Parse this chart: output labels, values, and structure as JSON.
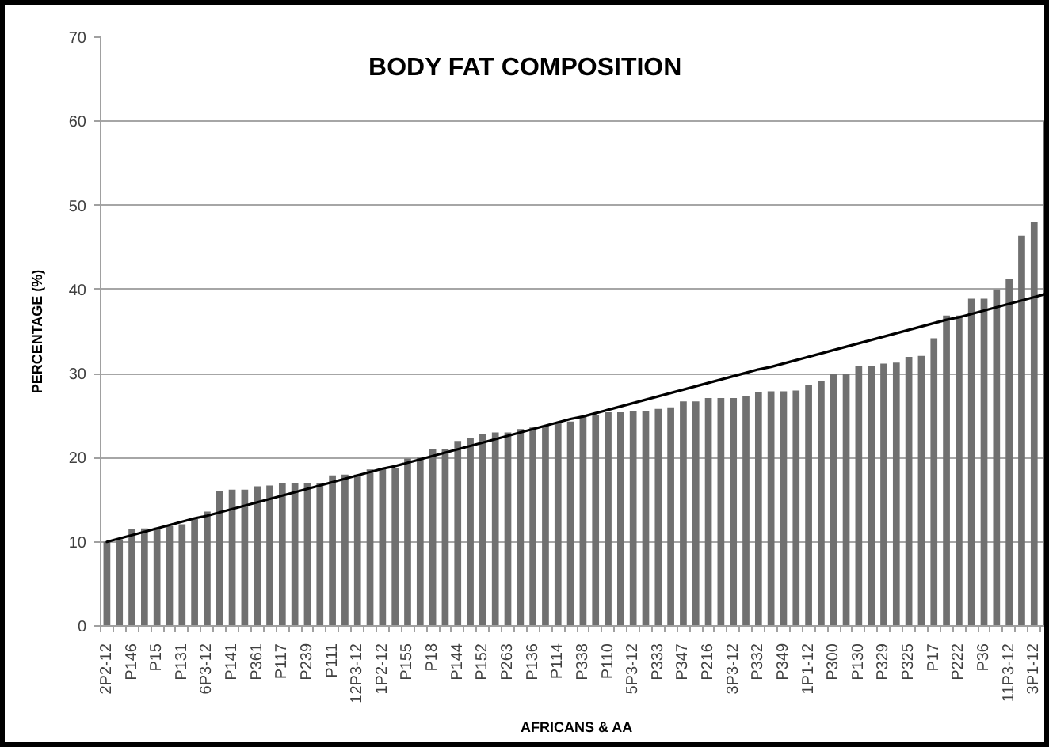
{
  "chart_data": {
    "type": "bar",
    "title": "BODY FAT COMPOSITION",
    "xlabel": "AFRICANS & AA",
    "ylabel": "PERCENTAGE (%)",
    "categories": [
      "2P2-12",
      null,
      "P146",
      null,
      "P15",
      null,
      "P131",
      null,
      "6P3-12",
      null,
      "P141",
      null,
      "P361",
      null,
      "P117",
      null,
      "P239",
      null,
      "P111",
      null,
      "12P3-12",
      null,
      "1P2-12",
      null,
      "P155",
      null,
      "P18",
      null,
      "P144",
      null,
      "P152",
      null,
      "P263",
      null,
      "P136",
      null,
      "P114",
      null,
      "P338",
      null,
      "P110",
      null,
      "5P3-12",
      null,
      "P333",
      null,
      "P347",
      null,
      "P216",
      null,
      "3P3-12",
      null,
      "P332",
      null,
      "P349",
      null,
      "1P1-12",
      null,
      "P300",
      null,
      "P130",
      null,
      "P329",
      null,
      "P325",
      null,
      "P17",
      null,
      "P222",
      null,
      "P36",
      null,
      "11P3-12",
      null,
      "3P1-12",
      null
    ],
    "series": [
      {
        "color": "#707070",
        "values": [
          10.0,
          10.3,
          11.5,
          11.6,
          11.7,
          11.9,
          12.1,
          12.7,
          13.6,
          16.0,
          16.2,
          16.2,
          16.6,
          16.7,
          17.0,
          17.0,
          17.0,
          17.0,
          17.9,
          18.0,
          18.0,
          18.6,
          18.7,
          18.8,
          19.9,
          20.0,
          21.0,
          21.0,
          22.0,
          22.4,
          22.8,
          23.0,
          23.0,
          23.4,
          23.6,
          23.8,
          24.2,
          24.3,
          24.9,
          25.1,
          25.4,
          25.4,
          25.5,
          25.5,
          25.8,
          26.0,
          26.7,
          26.7,
          27.1,
          27.1,
          27.1,
          27.3,
          27.8,
          27.9,
          27.9,
          28.0,
          28.6,
          29.1,
          30.0,
          30.0,
          30.9,
          30.9,
          31.2,
          31.3,
          32.0,
          32.1,
          34.2,
          36.9,
          36.9,
          38.9,
          38.9,
          40.0,
          41.3,
          46.4,
          48.0,
          60.0
        ]
      },
      {
        "type": "line",
        "color": "#000000",
        "values": [
          10.0,
          10.4,
          10.8,
          11.2,
          11.6,
          12.0,
          12.4,
          12.8,
          13.1,
          13.5,
          13.9,
          14.3,
          14.7,
          15.1,
          15.5,
          15.9,
          16.3,
          16.7,
          17.1,
          17.5,
          17.9,
          18.3,
          18.7,
          19.0,
          19.4,
          19.8,
          20.2,
          20.6,
          21.0,
          21.4,
          21.8,
          22.2,
          22.6,
          23.0,
          23.4,
          23.8,
          24.2,
          24.6,
          24.9,
          25.3,
          25.7,
          26.1,
          26.5,
          26.9,
          27.3,
          27.7,
          28.1,
          28.5,
          28.9,
          29.3,
          29.7,
          30.1,
          30.5,
          30.8,
          31.2,
          31.6,
          32.0,
          32.4,
          32.8,
          33.2,
          33.6,
          34.0,
          34.4,
          34.8,
          35.2,
          35.6,
          36.0,
          36.4,
          36.7,
          37.1,
          37.5,
          37.9,
          38.3,
          38.7,
          39.1,
          39.5
        ]
      }
    ],
    "ylim": [
      0,
      70
    ],
    "yticks": [
      0,
      10,
      20,
      30,
      40,
      50,
      60,
      70
    ],
    "grid": "y"
  }
}
